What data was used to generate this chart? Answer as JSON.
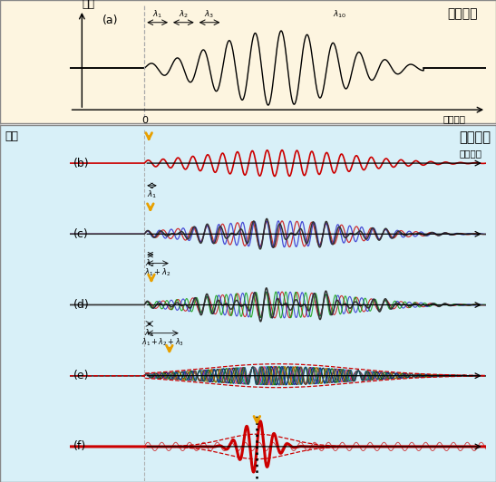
{
  "top_bg": "#fdf5e0",
  "bottom_bg": "#d8f0f8",
  "title_top": "電流分布",
  "title_bottom": "光の波形",
  "ylabel_top": "電流",
  "ylabel_bottom": "電場",
  "xlabel": "進行方向",
  "label_a": "(a)",
  "label_b": "(b)",
  "label_c": "(c)",
  "label_d": "(d)",
  "label_e": "(e)",
  "label_f": "(f)",
  "wave_red": "#cc0000",
  "wave_blue": "#2222cc",
  "wave_green": "#009900",
  "wave_cyan": "#00aaaa",
  "wave_magenta": "#aa00aa",
  "wave_orange": "#ff6600",
  "wave_darkblue": "#000088",
  "wave_darkgreen": "#006600",
  "arrow_yellow": "#e8a000",
  "gray_dashed": "#999999",
  "black": "#000000",
  "f1": 2.8,
  "f2": 3.5,
  "f3": 4.2,
  "amp": 0.38
}
